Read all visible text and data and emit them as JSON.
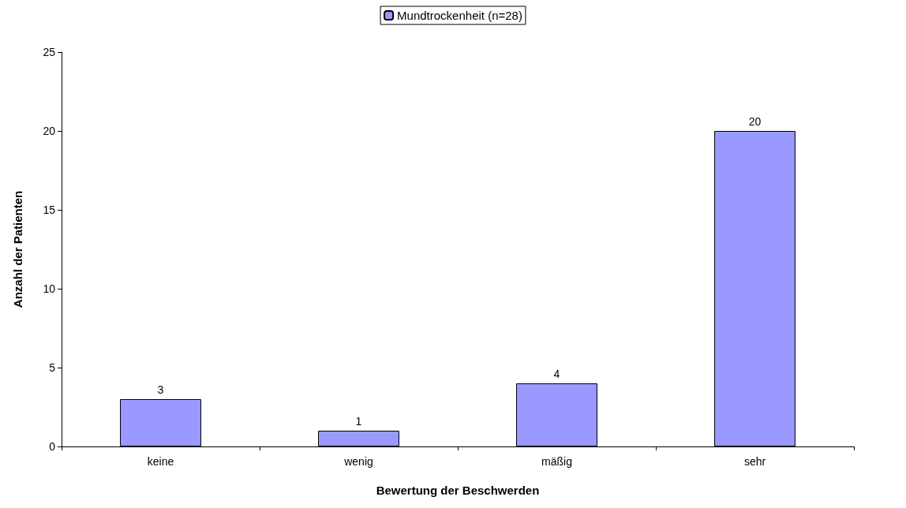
{
  "chart_data": {
    "type": "bar",
    "xlabel": "Bewertung der Beschwerden",
    "ylabel": "Anzahl der Patienten",
    "categories": [
      "keine",
      "wenig",
      "mäßig",
      "sehr"
    ],
    "series": [
      {
        "name": "Mundtrockenheit (n=28)",
        "color": "#9999ff",
        "values": [
          3,
          1,
          4,
          20
        ]
      }
    ],
    "ylim": [
      0,
      25
    ],
    "yticks": [
      0,
      5,
      10,
      15,
      20,
      25
    ],
    "grid": false,
    "legend": "top",
    "data_labels": true
  }
}
